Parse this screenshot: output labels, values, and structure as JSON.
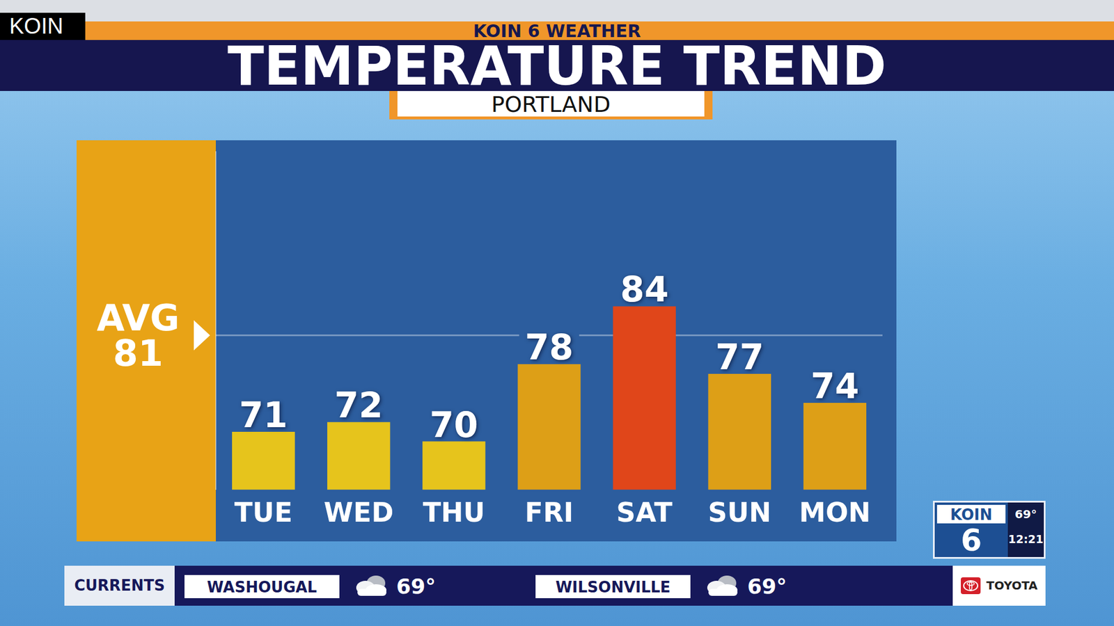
{
  "header": {
    "station": "KOIN",
    "banner": "KOIN 6 WEATHER",
    "title": "TEMPERATURE TREND",
    "location": "PORTLAND"
  },
  "chart_data": {
    "type": "bar",
    "categories": [
      "TUE",
      "WED",
      "THU",
      "FRI",
      "SAT",
      "SUN",
      "MON"
    ],
    "values": [
      71,
      72,
      70,
      78,
      84,
      77,
      74
    ],
    "colors": [
      "#e6c41c",
      "#e6c41c",
      "#e6c41c",
      "#dd9f17",
      "#e0461a",
      "#dd9f17",
      "#dd9f17"
    ],
    "ylim": [
      65,
      100
    ],
    "grid": false,
    "data_labels": true,
    "tick_labels": "x",
    "average": {
      "label": "AVG",
      "value": 81
    }
  },
  "currents": {
    "label": "CURRENTS",
    "stations": [
      {
        "name": "WASHOUGAL",
        "temperature": "69°"
      },
      {
        "name": "WILSONVILLE",
        "temperature": "69°"
      }
    ]
  },
  "station_bug": {
    "name": "KOIN",
    "channel": "6",
    "temperature": "69°",
    "time": "12:21"
  },
  "sponsor": "TOYOTA"
}
